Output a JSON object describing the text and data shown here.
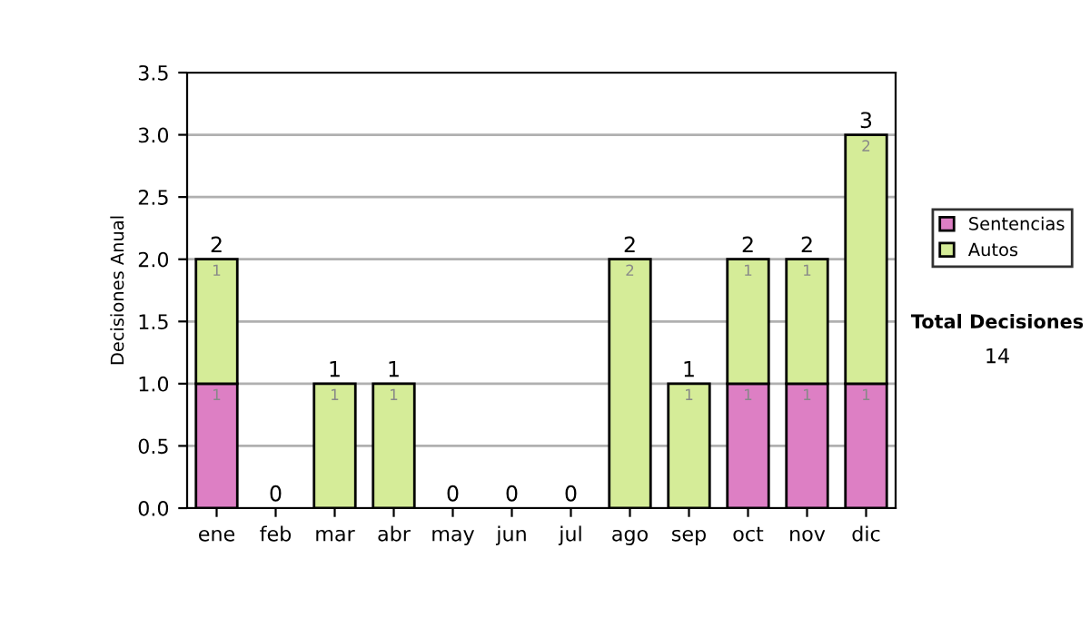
{
  "chart_data": {
    "type": "bar",
    "stacked": true,
    "ylabel": "Decisiones Anual",
    "categories": [
      "ene",
      "feb",
      "mar",
      "abr",
      "may",
      "jun",
      "jul",
      "ago",
      "sep",
      "oct",
      "nov",
      "dic"
    ],
    "series": [
      {
        "name": "Sentencias",
        "color": "#dd7fc4",
        "values": [
          1,
          0,
          0,
          0,
          0,
          0,
          0,
          0,
          0,
          1,
          1,
          1
        ],
        "value_labels": [
          "1",
          null,
          null,
          null,
          null,
          null,
          null,
          null,
          null,
          "1",
          "1",
          "1"
        ]
      },
      {
        "name": "Autos",
        "color": "#d5ec98",
        "values": [
          1,
          0,
          1,
          1,
          0,
          0,
          0,
          2,
          1,
          1,
          1,
          2
        ],
        "value_labels": [
          "1",
          null,
          "1",
          "1",
          null,
          null,
          null,
          "2",
          "1",
          "1",
          "1",
          "2"
        ]
      }
    ],
    "totals": [
      "2",
      "0",
      "1",
      "1",
      "0",
      "0",
      "0",
      "2",
      "1",
      "2",
      "2",
      "3"
    ],
    "ylim": [
      0,
      3.5
    ],
    "yticks": [
      "0.0",
      "0.5",
      "1.0",
      "1.5",
      "2.0",
      "2.5",
      "3.0",
      "3.5"
    ],
    "grid": "y",
    "legend": "right",
    "annotations": [
      "Total Decisiones",
      "14"
    ]
  }
}
